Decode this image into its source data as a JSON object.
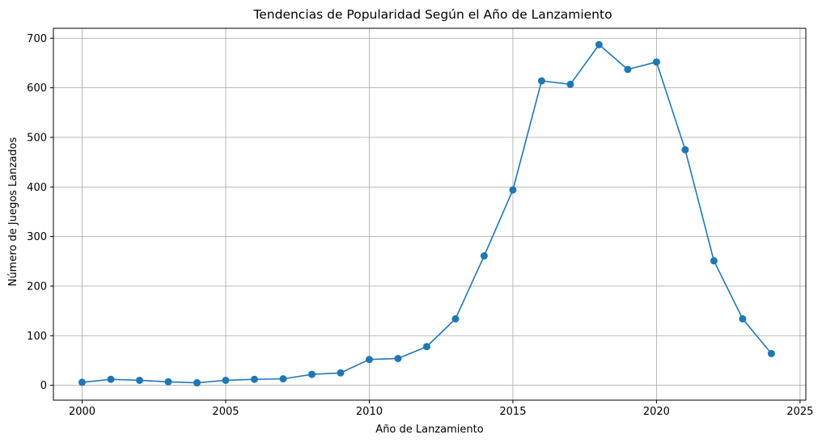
{
  "chart_data": {
    "type": "line",
    "title": "Tendencias de Popularidad Según el Año de Lanzamiento",
    "xlabel": "Año de Lanzamiento",
    "ylabel": "Número de Juegos Lanzados",
    "xlim": [
      1999,
      2025.2
    ],
    "ylim": [
      -30,
      720
    ],
    "xticks": [
      2000,
      2005,
      2010,
      2015,
      2020,
      2025
    ],
    "yticks": [
      0,
      100,
      200,
      300,
      400,
      500,
      600,
      700
    ],
    "grid": true,
    "series": [
      {
        "color": "#1f77b4",
        "marker": "circle",
        "x": [
          2000,
          2001,
          2002,
          2003,
          2004,
          2005,
          2006,
          2007,
          2008,
          2009,
          2010,
          2011,
          2012,
          2013,
          2014,
          2015,
          2016,
          2017,
          2018,
          2019,
          2020,
          2021,
          2022,
          2023,
          2024
        ],
        "y": [
          6,
          12,
          10,
          7,
          5,
          10,
          12,
          13,
          22,
          25,
          52,
          54,
          78,
          134,
          261,
          394,
          614,
          607,
          687,
          637,
          652,
          475,
          251,
          134,
          64
        ]
      }
    ]
  }
}
